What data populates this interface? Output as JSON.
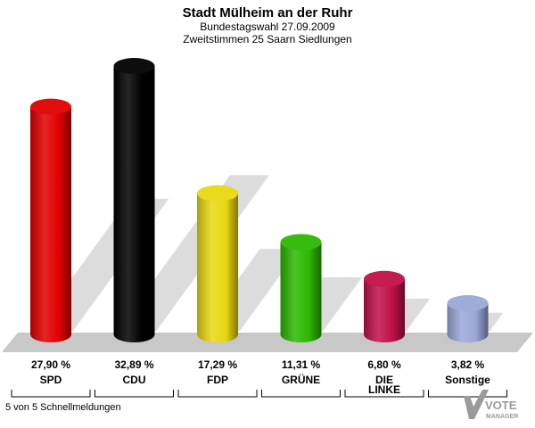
{
  "chart_data": {
    "type": "bar",
    "title": "Stadt Mülheim an der Ruhr",
    "subtitle_1": "Bundestagswahl 27.09.2009",
    "subtitle_2": "Zweitstimmen 25 Saarn Siedlungen",
    "categories": [
      "SPD",
      "CDU",
      "FDP",
      "GRÜNE",
      "DIE LINKE",
      "Sonstige"
    ],
    "values": [
      27.9,
      32.89,
      17.29,
      11.31,
      6.8,
      3.82
    ],
    "value_labels": [
      "27,90 %",
      "32,89 %",
      "17,29 %",
      "11,31 %",
      "6,80 %",
      "3,82 %"
    ],
    "colors": [
      "#e00000",
      "#000000",
      "#e8d810",
      "#2cb800",
      "#c0104a",
      "#9aa8d8"
    ],
    "ylim": [
      0,
      33
    ],
    "grid": false,
    "legend": "none"
  },
  "footer": {
    "note": "5 von 5 Schnellmeldungen"
  },
  "logo": {
    "word": "VOTE",
    "sub": "MANAGER"
  }
}
